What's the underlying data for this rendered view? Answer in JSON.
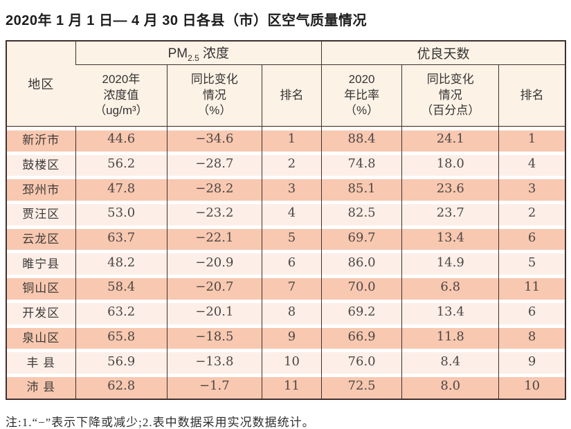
{
  "title": "2020年 1 月 1 日— 4 月 30 日各县（市）区空气质量情况",
  "table": {
    "corner_header": "地区",
    "group_headers": {
      "pm": {
        "prefix": "PM",
        "sub": "2.5",
        "suffix": " 浓度"
      },
      "good_days": "优良天数"
    },
    "sub_headers": {
      "pm_value": [
        "2020年",
        "浓度值",
        "（ug/m³）"
      ],
      "pm_change": [
        "同比变化",
        "情况",
        "（%）"
      ],
      "pm_rank": "排名",
      "good_rate": [
        "2020",
        "年比率",
        "（%）"
      ],
      "good_change": [
        "同比变化",
        "情况",
        "（百分点）"
      ],
      "good_rank": "排名"
    },
    "rows": [
      {
        "region": "新沂市",
        "pm_value": "44.6",
        "pm_change": "−34.6",
        "pm_rank": "1",
        "good_rate": "88.4",
        "good_change": "24.1",
        "good_rank": "1"
      },
      {
        "region": "鼓楼区",
        "pm_value": "56.2",
        "pm_change": "−28.7",
        "pm_rank": "2",
        "good_rate": "74.8",
        "good_change": "18.0",
        "good_rank": "4"
      },
      {
        "region": "邳州市",
        "pm_value": "47.8",
        "pm_change": "−28.2",
        "pm_rank": "3",
        "good_rate": "85.1",
        "good_change": "23.6",
        "good_rank": "3"
      },
      {
        "region": "贾汪区",
        "pm_value": "53.0",
        "pm_change": "−23.2",
        "pm_rank": "4",
        "good_rate": "82.5",
        "good_change": "23.7",
        "good_rank": "2"
      },
      {
        "region": "云龙区",
        "pm_value": "63.7",
        "pm_change": "−22.1",
        "pm_rank": "5",
        "good_rate": "69.7",
        "good_change": "13.4",
        "good_rank": "6"
      },
      {
        "region": "睢宁县",
        "pm_value": "48.2",
        "pm_change": "−20.9",
        "pm_rank": "6",
        "good_rate": "86.0",
        "good_change": "14.9",
        "good_rank": "5"
      },
      {
        "region": "铜山区",
        "pm_value": "58.4",
        "pm_change": "−20.7",
        "pm_rank": "7",
        "good_rate": "70.0",
        "good_change": "6.8",
        "good_rank": "11"
      },
      {
        "region": "开发区",
        "pm_value": "63.2",
        "pm_change": "−20.1",
        "pm_rank": "8",
        "good_rate": "69.2",
        "good_change": "13.4",
        "good_rank": "6"
      },
      {
        "region": "泉山区",
        "pm_value": "65.8",
        "pm_change": "−18.5",
        "pm_rank": "9",
        "good_rate": "66.9",
        "good_change": "11.8",
        "good_rank": "8"
      },
      {
        "region": "丰 县",
        "pm_value": "56.9",
        "pm_change": "−13.8",
        "pm_rank": "10",
        "good_rate": "76.0",
        "good_change": "8.4",
        "good_rank": "9"
      },
      {
        "region": "沛 县",
        "pm_value": "62.8",
        "pm_change": "−1.7",
        "pm_rank": "11",
        "good_rate": "72.5",
        "good_change": "8.0",
        "good_rank": "10"
      }
    ]
  },
  "note": "注:1.“−”表示下降或减少;2.表中数据采用实况数据统计。",
  "colors": {
    "row_odd": "#f8c8b0",
    "row_even": "#fdefe8",
    "header_bg": "#fdf2e6",
    "border_dark": "#3f2f2d"
  }
}
